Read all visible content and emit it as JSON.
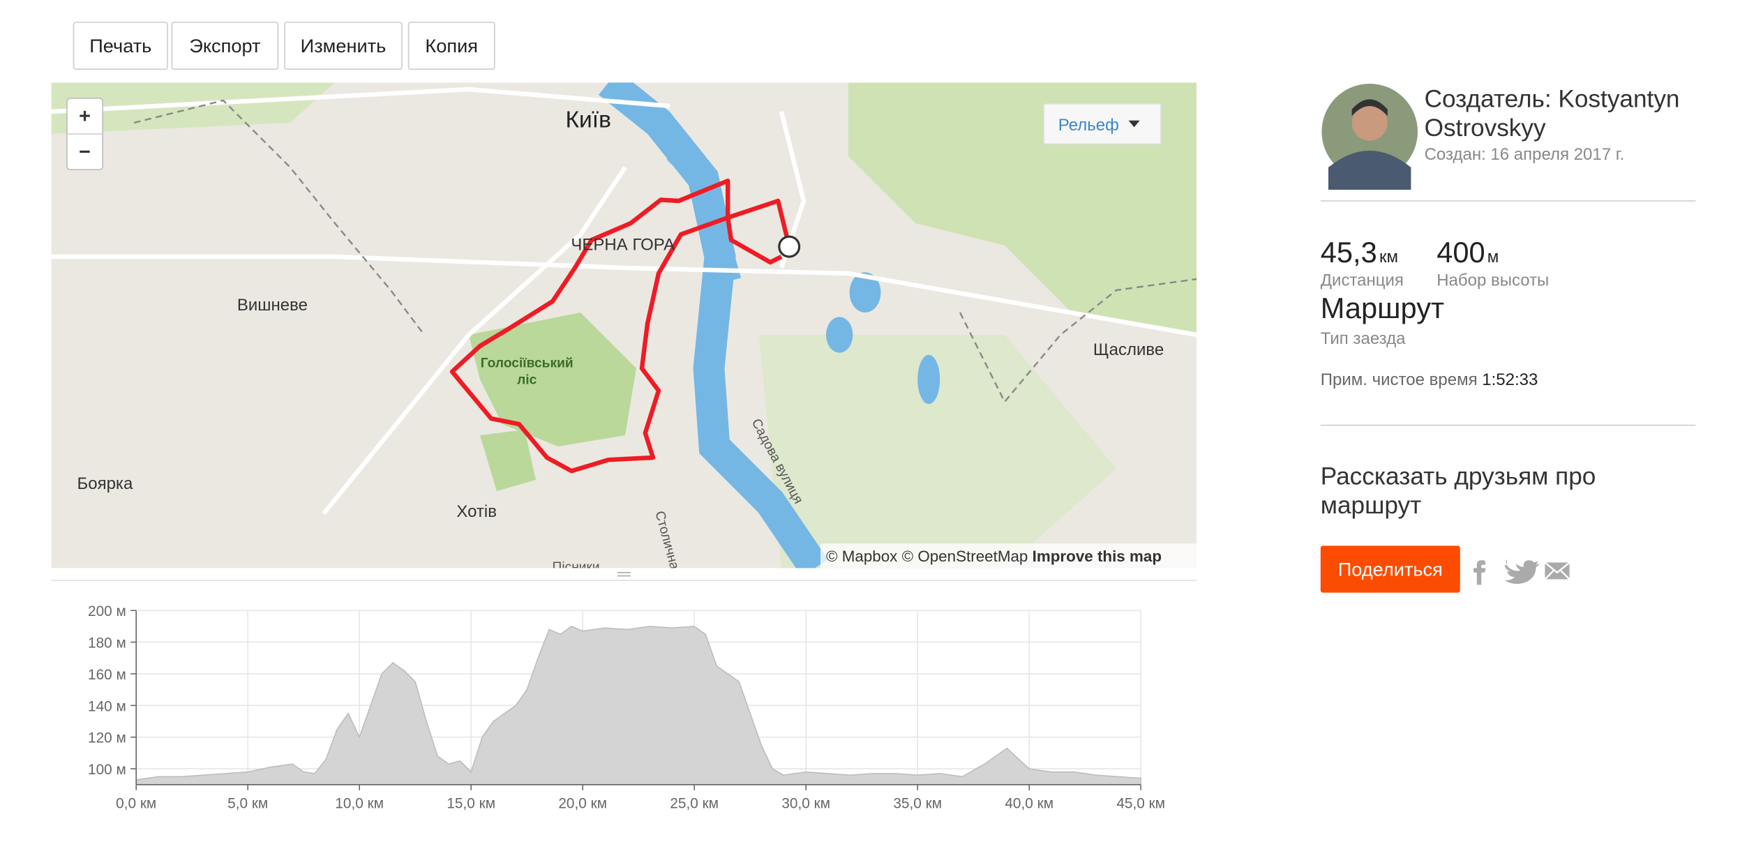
{
  "toolbar": {
    "buttons": [
      "Печать",
      "Экспорт",
      "Изменить",
      "Копия"
    ]
  },
  "map": {
    "zoom_in": "+",
    "zoom_out": "−",
    "layer_button": "Рельеф",
    "labels": [
      "Київ",
      "ЧЕРНА ГОРА",
      "Вишневе",
      "Голосіївський",
      "ліс",
      "Боярка",
      "Хотів",
      "Щасливе",
      "Садова вулиця",
      "Столична",
      "Пісники"
    ],
    "attribution": "© Mapbox © OpenStreetMap",
    "improve": "Improve this map"
  },
  "elevation_chart": {
    "type": "area",
    "x": [
      0,
      1,
      2,
      3,
      4,
      5,
      6,
      7,
      7.5,
      8,
      8.5,
      9,
      9.5,
      10,
      10.5,
      11,
      11.5,
      12,
      12.5,
      13,
      13.5,
      14,
      14.5,
      15,
      15.5,
      16,
      17,
      17.5,
      18,
      18.5,
      19,
      19.5,
      20,
      21,
      22,
      23,
      24,
      25,
      25.5,
      26,
      27,
      28,
      28.5,
      29,
      30,
      31,
      32,
      33,
      34,
      35,
      36,
      37,
      38,
      39,
      40,
      41,
      42,
      43,
      44,
      45
    ],
    "values": [
      93,
      95,
      95,
      96,
      97,
      98,
      101,
      103,
      98,
      97,
      106,
      125,
      135,
      120,
      140,
      160,
      167,
      162,
      155,
      130,
      108,
      103,
      105,
      98,
      120,
      130,
      140,
      150,
      170,
      188,
      185,
      190,
      187,
      189,
      188,
      190,
      189,
      190,
      185,
      165,
      155,
      115,
      100,
      96,
      98,
      97,
      96,
      97,
      97,
      96,
      97,
      95,
      103,
      113,
      100,
      98,
      98,
      96,
      95,
      94
    ],
    "color": "#d4d4d4",
    "xlim": [
      0,
      45
    ],
    "ylim": [
      90,
      200
    ],
    "xticks": [
      {
        "value": 0,
        "label": "0,0 км"
      },
      {
        "value": 5,
        "label": "5,0 км"
      },
      {
        "value": 10,
        "label": "10,0 км"
      },
      {
        "value": 15,
        "label": "15,0 км"
      },
      {
        "value": 20,
        "label": "20,0 км"
      },
      {
        "value": 25,
        "label": "25,0 км"
      },
      {
        "value": 30,
        "label": "30,0 км"
      },
      {
        "value": 35,
        "label": "35,0 км"
      },
      {
        "value": 40,
        "label": "40,0 км"
      },
      {
        "value": 45,
        "label": "45,0 км"
      }
    ],
    "yticks": [
      {
        "value": 100,
        "label": "100 м"
      },
      {
        "value": 120,
        "label": "120 м"
      },
      {
        "value": 140,
        "label": "140 м"
      },
      {
        "value": 160,
        "label": "160 м"
      },
      {
        "value": 180,
        "label": "180 м"
      },
      {
        "value": 200,
        "label": "200 м"
      }
    ],
    "grid": true
  },
  "sidebar": {
    "creator_line1": "Создатель: Kostyantyn",
    "creator_line2": "Ostrovskyy",
    "created": "Создан: 16 апреля 2017 г.",
    "distance": "45,3",
    "distance_unit": "км",
    "distance_label": "Дистанция",
    "elevation": "400",
    "elevation_unit": "м",
    "elevation_label": "Набор высоты",
    "ride_type": "Маршрут",
    "ride_type_label": "Тип заезда",
    "moving_time_label": "Прим. чистое время",
    "moving_time": "1:52:33",
    "share_heading_1": "Рассказать друзьям про",
    "share_heading_2": "маршрут",
    "share_button": "Поделиться"
  }
}
